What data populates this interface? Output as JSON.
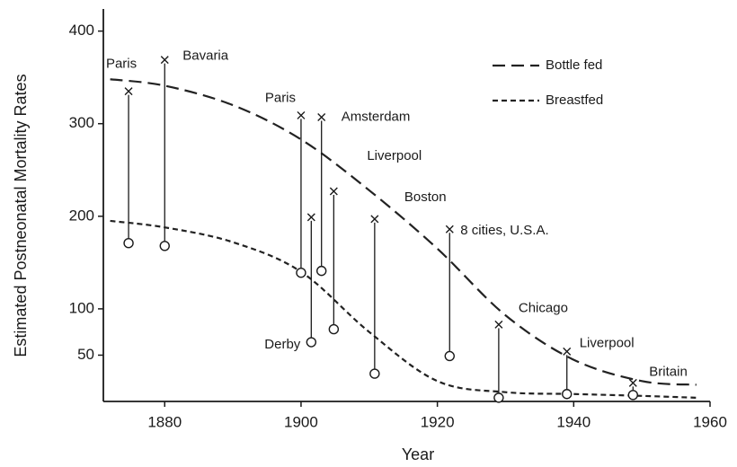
{
  "chart_data": {
    "type": "line",
    "xlabel": "Year",
    "ylabel": "Estimated Postneonatal Mortality Rates",
    "xlim": [
      1871,
      1960
    ],
    "ylim": [
      0,
      420
    ],
    "xticks": [
      1880,
      1900,
      1920,
      1940,
      1960
    ],
    "yticks": [
      50,
      100,
      200,
      300,
      400
    ],
    "legend": "upper right",
    "series": [
      {
        "name": "Bottle fed",
        "color": "#222222",
        "dash": "long",
        "x": [
          1872,
          1880,
          1890,
          1900,
          1910,
          1920,
          1930,
          1940,
          1950,
          1958
        ],
        "values": [
          348,
          341,
          320,
          283,
          228,
          165,
          93,
          45,
          22,
          18
        ]
      },
      {
        "name": "Breastfed",
        "color": "#222222",
        "dash": "short",
        "x": [
          1872,
          1880,
          1890,
          1900,
          1910,
          1920,
          1930,
          1940,
          1950,
          1958
        ],
        "values": [
          195,
          188,
          172,
          140,
          75,
          22,
          10,
          8,
          6,
          4
        ]
      }
    ],
    "points": {
      "labels": [
        "Paris",
        "Bavaria",
        "Paris",
        "Amsterdam",
        "Liverpool",
        "Boston",
        "8 cities, U.S.A.",
        "Derby",
        "Chicago",
        "Liverpool",
        "Britain"
      ],
      "x": [
        1874.7,
        1880,
        1900,
        1903,
        1904.8,
        1910.8,
        1921.8,
        1901.5,
        1929,
        1939,
        1948.7
      ],
      "bottle_fed": [
        335,
        369,
        309,
        307,
        227,
        197,
        186,
        199,
        83,
        54,
        20
      ],
      "breastfed": [
        171,
        168,
        139,
        141,
        78,
        30,
        49,
        64,
        4,
        8,
        7
      ]
    }
  }
}
